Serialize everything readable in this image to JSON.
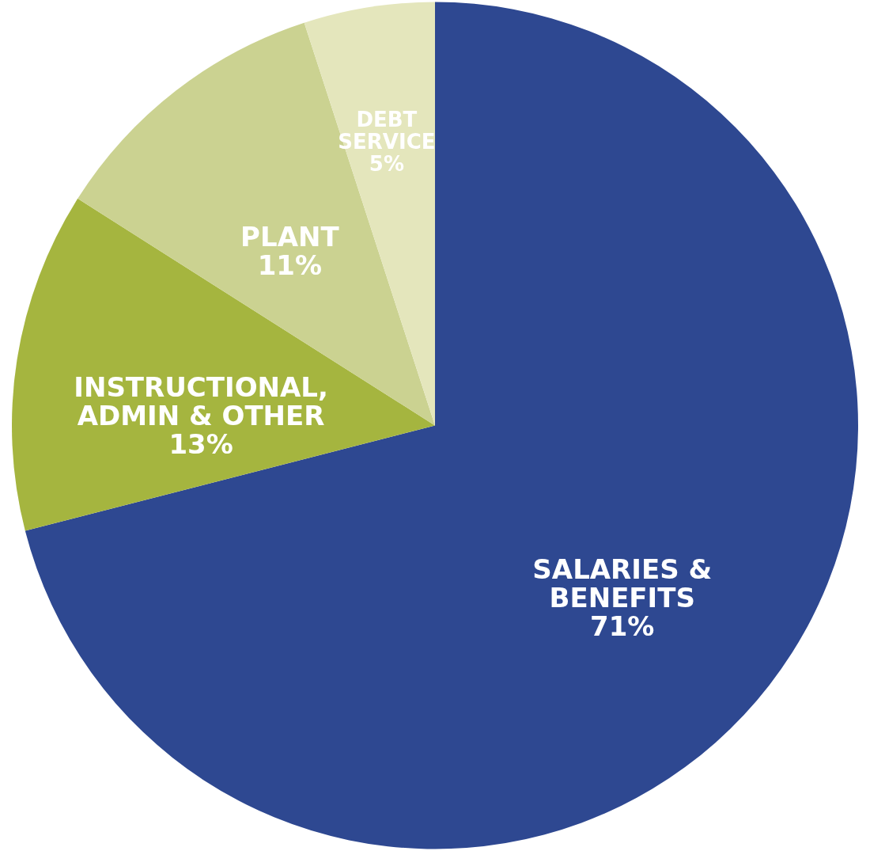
{
  "chart_data": {
    "type": "pie",
    "categories": [
      "SALARIES &\nBENEFITS",
      "INSTRUCTIONAL,\nADMIN & OTHER",
      "PLANT",
      "DEBT\nSERVICE"
    ],
    "values": [
      71,
      13,
      11,
      5
    ],
    "value_labels": [
      "71%",
      "13%",
      "11%",
      "5%"
    ],
    "colors": [
      "#2e4891",
      "#a5b53f",
      "#cbd291",
      "#e4e6bc"
    ]
  }
}
